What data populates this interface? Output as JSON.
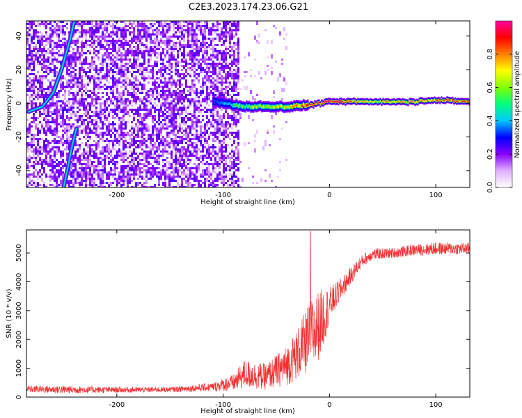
{
  "title": "C2E3.2023.174.23.06.G21",
  "chart_data": [
    {
      "type": "heatmap",
      "xlabel": "Height of straight line (km)",
      "ylabel": "Frequency (Hz)",
      "xlim": [
        -285,
        132
      ],
      "ylim": [
        -50,
        49
      ],
      "xticks": [
        -200,
        -100,
        0,
        100
      ],
      "yticks": [
        -40,
        -20,
        0,
        20,
        40
      ],
      "xtick_labels": [
        "-200",
        "-100",
        "0",
        "100"
      ],
      "ytick_labels": [
        "-40",
        "-20",
        "0",
        "20",
        "40"
      ],
      "grid": false,
      "colorbar": {
        "label": "Normalized spectral amplitude",
        "range": [
          0,
          1
        ],
        "ticks": [
          0.0,
          0.2,
          0.4,
          0.6,
          0.8
        ],
        "tick_labels": [
          "0.0",
          "0.2",
          "0.4",
          "0.6",
          "0.8"
        ],
        "colors": [
          "#ffffff",
          "#e0b0ff",
          "#8800ff",
          "#0000ff",
          "#00c8ff",
          "#00ff80",
          "#80ff00",
          "#ffff00",
          "#ff8000",
          "#ff0000",
          "#ff00a0"
        ]
      },
      "features": {
        "noise_region_x": [
          -285,
          -85
        ],
        "sparse_region_x": [
          -85,
          -40
        ],
        "signal_band": {
          "x": [
            -110,
            -80,
            -40,
            -20,
            0,
            40,
            80,
            95,
            132
          ],
          "freq": [
            1,
            -2,
            -2,
            -1,
            1,
            1,
            1,
            2,
            1
          ],
          "amplitude": [
            0.3,
            0.6,
            0.7,
            0.85,
            0.95,
            0.7,
            0.75,
            0.8,
            0.85
          ]
        },
        "curved_tracks": [
          {
            "x": [
              -283,
              -270,
              -260,
              -252,
              -244,
              -240
            ],
            "freq": [
              -5,
              -2,
              6,
              20,
              38,
              49
            ]
          },
          {
            "x": [
              -238,
              -242,
              -246,
              -250
            ],
            "freq": [
              -15,
              -25,
              -38,
              -50
            ]
          }
        ]
      }
    },
    {
      "type": "line",
      "xlabel": "Height of straight line (km)",
      "ylabel": "SNR (10 * v/v)",
      "xlim": [
        -285,
        132
      ],
      "ylim": [
        0,
        5800
      ],
      "xticks": [
        -200,
        -100,
        0,
        100
      ],
      "yticks": [
        0,
        1000,
        2000,
        3000,
        4000,
        5000
      ],
      "xtick_labels": [
        "-200",
        "-100",
        "0",
        "100"
      ],
      "ytick_labels": [
        "0",
        "1000",
        "2000",
        "3000",
        "4000",
        "5000"
      ],
      "grid": false,
      "color": "#f03030",
      "series_envelope": {
        "x": [
          -285,
          -250,
          -200,
          -150,
          -110,
          -90,
          -80,
          -60,
          -40,
          -30,
          -20,
          -15,
          -10,
          -5,
          0,
          10,
          20,
          30,
          40,
          60,
          80,
          100,
          132
        ],
        "mean": [
          280,
          260,
          250,
          260,
          350,
          500,
          800,
          700,
          1100,
          1500,
          2000,
          2200,
          2500,
          2800,
          3200,
          3700,
          4200,
          4700,
          4950,
          5000,
          5100,
          5150,
          5150
        ],
        "noise": [
          120,
          140,
          100,
          90,
          150,
          300,
          500,
          450,
          700,
          900,
          1200,
          1300,
          1200,
          1000,
          600,
          400,
          300,
          220,
          200,
          180,
          200,
          220,
          200
        ]
      },
      "peak": {
        "x": -18,
        "y": 5750
      }
    }
  ]
}
